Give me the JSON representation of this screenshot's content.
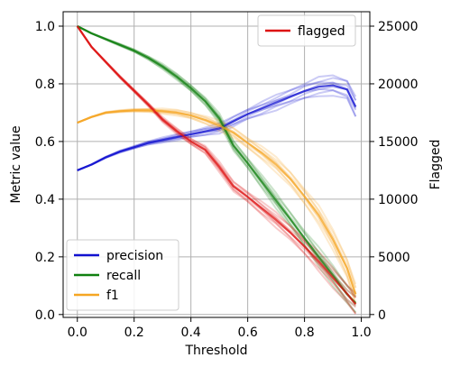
{
  "chart_data": {
    "type": "line",
    "x": [
      0.0,
      0.05,
      0.1,
      0.15,
      0.2,
      0.25,
      0.3,
      0.35,
      0.4,
      0.45,
      0.5,
      0.55,
      0.6,
      0.65,
      0.7,
      0.75,
      0.8,
      0.85,
      0.9,
      0.95,
      0.98
    ],
    "xlabel": "Threshold",
    "ylabel": "Metric value",
    "y2label": "Flagged",
    "xlim": [
      -0.05,
      1.03
    ],
    "ylim": [
      -0.01,
      1.05
    ],
    "y2lim": [
      -250,
      26250
    ],
    "xticks": [
      "0.0",
      "0.2",
      "0.4",
      "0.6",
      "0.8",
      "1.0"
    ],
    "yticks": [
      "0.0",
      "0.2",
      "0.4",
      "0.6",
      "0.8",
      "1.0"
    ],
    "y2ticks": [
      "0",
      "5000",
      "10000",
      "15000",
      "20000",
      "25000"
    ],
    "grid": true,
    "legend_left": {
      "placement": "lower-left",
      "items": [
        {
          "label": "precision",
          "color": "#1010d0"
        },
        {
          "label": "recall",
          "color": "#108010"
        },
        {
          "label": "f1",
          "color": "#f5a623"
        }
      ]
    },
    "legend_right": {
      "placement": "upper-right",
      "items": [
        {
          "label": "flagged",
          "color": "#dd1111"
        }
      ]
    },
    "series": [
      {
        "name": "precision",
        "axis": "left",
        "color": "#1010d0",
        "values": [
          0.5,
          0.52,
          0.545,
          0.565,
          0.58,
          0.595,
          0.605,
          0.615,
          0.625,
          0.635,
          0.645,
          0.67,
          0.695,
          0.715,
          0.735,
          0.755,
          0.775,
          0.79,
          0.795,
          0.78,
          0.72
        ]
      },
      {
        "name": "recall",
        "axis": "left",
        "color": "#108010",
        "values": [
          1.0,
          0.975,
          0.955,
          0.935,
          0.915,
          0.89,
          0.86,
          0.825,
          0.785,
          0.74,
          0.68,
          0.585,
          0.525,
          0.46,
          0.395,
          0.33,
          0.265,
          0.2,
          0.135,
          0.07,
          0.04
        ]
      },
      {
        "name": "f1",
        "axis": "left",
        "color": "#f5a623",
        "values": [
          0.665,
          0.685,
          0.7,
          0.705,
          0.708,
          0.708,
          0.705,
          0.7,
          0.69,
          0.675,
          0.655,
          0.63,
          0.595,
          0.56,
          0.52,
          0.47,
          0.41,
          0.345,
          0.26,
          0.16,
          0.07
        ]
      },
      {
        "name": "flagged",
        "axis": "right",
        "color": "#dd1111",
        "values": [
          25000,
          23200,
          21900,
          20600,
          19400,
          18200,
          16900,
          15900,
          15000,
          14300,
          12800,
          11100,
          10200,
          9200,
          8200,
          7100,
          5900,
          4600,
          3200,
          1800,
          900
        ]
      }
    ]
  }
}
